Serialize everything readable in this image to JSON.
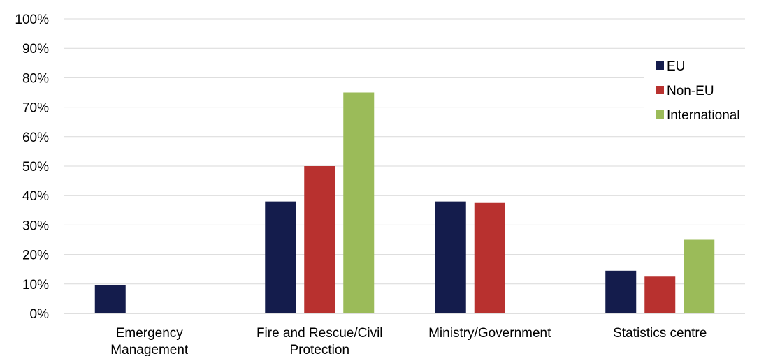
{
  "chart_data": {
    "type": "bar",
    "categories": [
      [
        "Emergency",
        "Management"
      ],
      [
        "Fire and Rescue/Civil",
        "Protection"
      ],
      [
        "Ministry/Government"
      ],
      [
        "Statistics centre"
      ]
    ],
    "series": [
      {
        "name": "EU",
        "color": "#141c4c",
        "values": [
          9.5,
          38,
          38,
          14.5
        ]
      },
      {
        "name": "Non-EU",
        "color": "#b8312f",
        "values": [
          0,
          50,
          37.5,
          12.5
        ]
      },
      {
        "name": "International",
        "color": "#9bbb59",
        "values": [
          0,
          75,
          0,
          25
        ]
      }
    ],
    "yticks": [
      "0%",
      "10%",
      "20%",
      "30%",
      "40%",
      "50%",
      "60%",
      "70%",
      "80%",
      "90%",
      "100%"
    ],
    "ylim": [
      0,
      100
    ],
    "grid": true,
    "legend_position": "right",
    "title": "",
    "xlabel": "",
    "ylabel": ""
  }
}
